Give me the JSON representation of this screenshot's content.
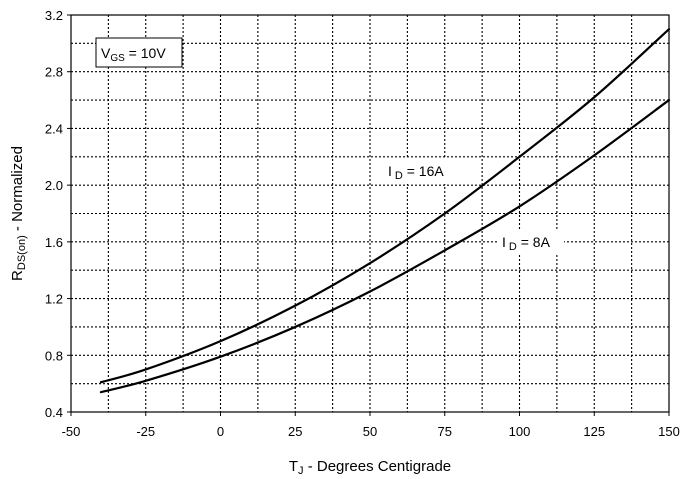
{
  "chart_data": {
    "type": "line",
    "xlabel": "T",
    "xlabel_sub": "J",
    "xlabel_rest": " - Degrees Centigrade",
    "ylabel": "R",
    "ylabel_sub": "DS(on)",
    "ylabel_rest": " - Normalized",
    "xlim": [
      -50,
      150
    ],
    "ylim": [
      0.4,
      3.2
    ],
    "x_ticks": [
      "-50",
      "-25",
      "0",
      "25",
      "50",
      "75",
      "100",
      "125",
      "150"
    ],
    "y_ticks": [
      "0.4",
      "0.8",
      "1.2",
      "1.6",
      "2.0",
      "2.4",
      "2.8",
      "3.2"
    ],
    "grid": true,
    "annotations": {
      "condition": {
        "main": "V",
        "sub": "GS",
        "rest": " = 10V"
      },
      "series_16a": {
        "main": "I",
        "sub": "D",
        "rest": " = 16A"
      },
      "series_8a": {
        "main": "I",
        "sub": "D",
        "rest": " = 8A"
      }
    },
    "series": [
      {
        "name": "I D = 16A",
        "x": [
          -40,
          -25,
          0,
          25,
          50,
          75,
          100,
          125,
          150
        ],
        "y": [
          0.61,
          0.7,
          0.9,
          1.15,
          1.45,
          1.8,
          2.2,
          2.62,
          3.1
        ]
      },
      {
        "name": "I D = 8A",
        "x": [
          -40,
          -25,
          0,
          25,
          50,
          75,
          100,
          125,
          150
        ],
        "y": [
          0.54,
          0.62,
          0.79,
          1.0,
          1.25,
          1.54,
          1.85,
          2.21,
          2.6
        ]
      }
    ]
  }
}
